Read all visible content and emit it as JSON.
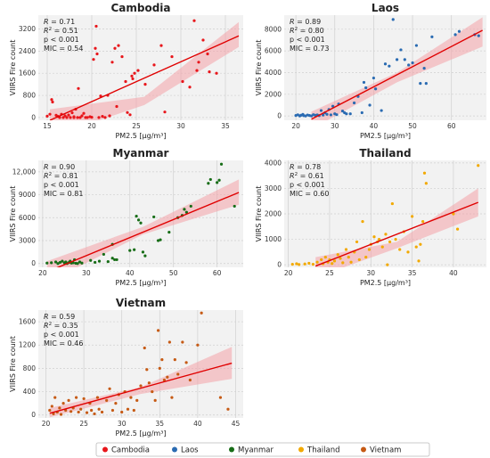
{
  "figure": {
    "y_label": "VIIRS Fire count",
    "x_label": "PM2.5 [μg/m³]"
  },
  "legend": [
    {
      "name": "Cambodia",
      "color": "#e8161b"
    },
    {
      "name": "Laos",
      "color": "#2a6bb2"
    },
    {
      "name": "Myanmar",
      "color": "#176d17"
    },
    {
      "name": "Thailand",
      "color": "#f2a900"
    },
    {
      "name": "Vietnam",
      "color": "#c65a14"
    }
  ],
  "chart_data": [
    {
      "type": "scatter",
      "title": "Cambodia",
      "color": "#e8161b",
      "xlim": [
        14,
        37
      ],
      "ylim": [
        -100,
        3700
      ],
      "xticks": [
        15,
        20,
        25,
        30,
        35
      ],
      "yticks": [
        0,
        800,
        1600,
        2400,
        3200
      ],
      "yticklabels": [
        "0",
        "800",
        "1600",
        "2400",
        "3200"
      ],
      "stats": {
        "R": "0.71",
        "R2": "0.51",
        "p": "< 0.001",
        "MIC": "0.54"
      },
      "fit": {
        "x": [
          15.3,
          36.5
        ],
        "y": [
          -100,
          2950
        ],
        "band_start": [
          -700,
          300
        ],
        "band_mid": [
          450,
          750
        ],
        "band_end": [
          2550,
          3450
        ]
      },
      "points": [
        [
          15,
          50
        ],
        [
          15.3,
          120
        ],
        [
          15.5,
          650
        ],
        [
          15.6,
          560
        ],
        [
          16,
          80
        ],
        [
          16.2,
          40
        ],
        [
          16.4,
          0
        ],
        [
          16.6,
          120
        ],
        [
          16.8,
          0
        ],
        [
          17,
          60
        ],
        [
          17.2,
          0
        ],
        [
          17.4,
          90
        ],
        [
          17.6,
          0
        ],
        [
          17.8,
          170
        ],
        [
          18,
          30
        ],
        [
          18,
          0
        ],
        [
          18.2,
          300
        ],
        [
          18.4,
          0
        ],
        [
          18.5,
          1050
        ],
        [
          18.7,
          0
        ],
        [
          18.9,
          60
        ],
        [
          19.1,
          150
        ],
        [
          19.3,
          0
        ],
        [
          19.5,
          0
        ],
        [
          19.8,
          30
        ],
        [
          20,
          10
        ],
        [
          20.2,
          2100
        ],
        [
          20.4,
          2500
        ],
        [
          20.5,
          3300
        ],
        [
          20.6,
          2300
        ],
        [
          20.8,
          0
        ],
        [
          21,
          780
        ],
        [
          21.2,
          40
        ],
        [
          21.5,
          0
        ],
        [
          21.8,
          800
        ],
        [
          22,
          60
        ],
        [
          22.3,
          2000
        ],
        [
          22.6,
          2500
        ],
        [
          22.8,
          400
        ],
        [
          23,
          2600
        ],
        [
          23.4,
          2200
        ],
        [
          23.8,
          1300
        ],
        [
          24,
          180
        ],
        [
          24.3,
          100
        ],
        [
          24.5,
          1500
        ],
        [
          24.6,
          1400
        ],
        [
          24.8,
          1600
        ],
        [
          25.2,
          1700
        ],
        [
          26,
          1200
        ],
        [
          27,
          1900
        ],
        [
          27.8,
          2600
        ],
        [
          28.2,
          200
        ],
        [
          29,
          2200
        ],
        [
          30.2,
          1300
        ],
        [
          31,
          1100
        ],
        [
          31.5,
          3500
        ],
        [
          31.8,
          1700
        ],
        [
          32,
          2000
        ],
        [
          32.5,
          2800
        ],
        [
          33,
          2300
        ],
        [
          33.2,
          1650
        ],
        [
          34,
          1600
        ]
      ]
    },
    {
      "type": "scatter",
      "title": "Laos",
      "color": "#2a6bb2",
      "xlim": [
        17,
        69
      ],
      "ylim": [
        -400,
        9300
      ],
      "xticks": [
        20,
        30,
        40,
        50,
        60
      ],
      "yticks": [
        0,
        2000,
        4000,
        6000,
        8000
      ],
      "yticklabels": [
        "0",
        "2000",
        "4000",
        "6000",
        "8000"
      ],
      "stats": {
        "R": "0.89",
        "R2": "0.80",
        "p": "< 0.001",
        "MIC": "0.73"
      },
      "fit": {
        "x": [
          24,
          68
        ],
        "y": [
          -300,
          7900
        ],
        "band_start": [
          -1200,
          400
        ],
        "band_mid": [
          3100,
          4000
        ],
        "band_end": [
          6400,
          9100
        ]
      },
      "points": [
        [
          20,
          40
        ],
        [
          20.5,
          110
        ],
        [
          21,
          0
        ],
        [
          21.3,
          60
        ],
        [
          21.8,
          150
        ],
        [
          22,
          30
        ],
        [
          22.5,
          0
        ],
        [
          23,
          90
        ],
        [
          23.5,
          40
        ],
        [
          24,
          0
        ],
        [
          24.5,
          120
        ],
        [
          25,
          60
        ],
        [
          25.5,
          100
        ],
        [
          26,
          30
        ],
        [
          26.5,
          500
        ],
        [
          27,
          80
        ],
        [
          27.5,
          300
        ],
        [
          28,
          150
        ],
        [
          28.5,
          600
        ],
        [
          29,
          100
        ],
        [
          29.5,
          900
        ],
        [
          30,
          200
        ],
        [
          30.5,
          120
        ],
        [
          31,
          1100
        ],
        [
          32,
          450
        ],
        [
          32.5,
          300
        ],
        [
          33,
          200
        ],
        [
          34,
          200
        ],
        [
          35,
          1200
        ],
        [
          36,
          1800
        ],
        [
          37,
          300
        ],
        [
          37.5,
          3100
        ],
        [
          38,
          2600
        ],
        [
          39,
          1000
        ],
        [
          40,
          3500
        ],
        [
          40.5,
          2500
        ],
        [
          42,
          500
        ],
        [
          43,
          4800
        ],
        [
          44,
          4600
        ],
        [
          45,
          8900
        ],
        [
          46,
          5200
        ],
        [
          47,
          6100
        ],
        [
          48,
          5200
        ],
        [
          49,
          4700
        ],
        [
          50,
          4900
        ],
        [
          51,
          6500
        ],
        [
          52,
          3000
        ],
        [
          53,
          4400
        ],
        [
          53.5,
          3000
        ],
        [
          55,
          7300
        ],
        [
          61,
          7500
        ],
        [
          62,
          7800
        ],
        [
          66,
          7500
        ],
        [
          67,
          7400
        ]
      ]
    },
    {
      "type": "scatter",
      "title": "Myanmar",
      "color": "#176d17",
      "xlim": [
        19,
        66
      ],
      "ylim": [
        -500,
        13500
      ],
      "xticks": [
        20,
        30,
        40,
        50,
        60
      ],
      "yticks": [
        0,
        3000,
        6000,
        9000,
        12000
      ],
      "yticklabels": [
        "0",
        "3000",
        "6000",
        "9000",
        "12,000"
      ],
      "stats": {
        "R": "0.90",
        "R2": "0.81",
        "p": "< 0.001",
        "MIC": "0.81"
      },
      "fit": {
        "x": [
          21,
          65
        ],
        "y": [
          -1100,
          9300
        ],
        "band_start": [
          -2500,
          300
        ],
        "band_mid": [
          3800,
          4800
        ],
        "band_end": [
          7700,
          11000
        ]
      },
      "points": [
        [
          21,
          60
        ],
        [
          22,
          100
        ],
        [
          23,
          200
        ],
        [
          23.5,
          0
        ],
        [
          24,
          150
        ],
        [
          24.5,
          300
        ],
        [
          25,
          80
        ],
        [
          25.3,
          200
        ],
        [
          25.6,
          0
        ],
        [
          26,
          120
        ],
        [
          26.3,
          300
        ],
        [
          26.6,
          50
        ],
        [
          27,
          100
        ],
        [
          27.3,
          500
        ],
        [
          27.6,
          30
        ],
        [
          28,
          0
        ],
        [
          28.5,
          200
        ],
        [
          29,
          50
        ],
        [
          31,
          400
        ],
        [
          32,
          150
        ],
        [
          33,
          300
        ],
        [
          34,
          1200
        ],
        [
          35,
          250
        ],
        [
          36,
          700
        ],
        [
          36,
          2500
        ],
        [
          36.5,
          500
        ],
        [
          37,
          500
        ],
        [
          40,
          1700
        ],
        [
          41,
          1800
        ],
        [
          41.5,
          6200
        ],
        [
          42,
          5700
        ],
        [
          42.5,
          5300
        ],
        [
          43,
          1500
        ],
        [
          43.5,
          1000
        ],
        [
          45.5,
          6100
        ],
        [
          46.5,
          3000
        ],
        [
          47,
          3100
        ],
        [
          49,
          4100
        ],
        [
          51,
          6000
        ],
        [
          52,
          6300
        ],
        [
          52.5,
          7100
        ],
        [
          53,
          6700
        ],
        [
          54,
          7500
        ],
        [
          58,
          10500
        ],
        [
          58.5,
          11000
        ],
        [
          60,
          10600
        ],
        [
          60.5,
          10900
        ],
        [
          61,
          13000
        ],
        [
          64,
          7500
        ]
      ]
    },
    {
      "type": "scatter",
      "title": "Thailand",
      "color": "#f2a900",
      "xlim": [
        19.5,
        44
      ],
      "ylim": [
        -100,
        4100
      ],
      "xticks": [
        20,
        25,
        30,
        35,
        40
      ],
      "yticks": [
        0,
        1000,
        2000,
        3000,
        4000
      ],
      "yticklabels": [
        "0",
        "1000",
        "2000",
        "3000",
        "4000"
      ],
      "stats": {
        "R": "0.78",
        "R2": "0.61",
        "p": "< 0.001",
        "MIC": "0.60"
      },
      "fit": {
        "x": [
          23.3,
          43
        ],
        "y": [
          -50,
          2450
        ],
        "band_start": [
          -500,
          300
        ],
        "band_mid": [
          650,
          900
        ],
        "band_end": [
          1900,
          3000
        ]
      },
      "points": [
        [
          20.5,
          20
        ],
        [
          21,
          40
        ],
        [
          21.3,
          10
        ],
        [
          22,
          30
        ],
        [
          22.5,
          60
        ],
        [
          23,
          20
        ],
        [
          23.5,
          100
        ],
        [
          24,
          200
        ],
        [
          24.2,
          40
        ],
        [
          24.5,
          300
        ],
        [
          24.8,
          100
        ],
        [
          25,
          200
        ],
        [
          25.3,
          50
        ],
        [
          25.6,
          150
        ],
        [
          26,
          400
        ],
        [
          26.3,
          250
        ],
        [
          26.6,
          80
        ],
        [
          27,
          600
        ],
        [
          27.3,
          300
        ],
        [
          27.6,
          100
        ],
        [
          28,
          500
        ],
        [
          28.3,
          900
        ],
        [
          28.6,
          200
        ],
        [
          29,
          1700
        ],
        [
          29.4,
          300
        ],
        [
          29.8,
          600
        ],
        [
          30,
          800
        ],
        [
          30.4,
          1100
        ],
        [
          30.8,
          900
        ],
        [
          31,
          1000
        ],
        [
          31.4,
          700
        ],
        [
          31.8,
          1200
        ],
        [
          32,
          0
        ],
        [
          32.3,
          900
        ],
        [
          32.6,
          2400
        ],
        [
          33,
          1000
        ],
        [
          33.5,
          600
        ],
        [
          34,
          1300
        ],
        [
          34.5,
          500
        ],
        [
          35,
          1900
        ],
        [
          35.5,
          700
        ],
        [
          35.8,
          150
        ],
        [
          36,
          800
        ],
        [
          36.3,
          1700
        ],
        [
          36.5,
          3600
        ],
        [
          36.7,
          3200
        ],
        [
          40,
          2000
        ],
        [
          40.5,
          1400
        ],
        [
          43,
          3900
        ]
      ]
    },
    {
      "type": "scatter",
      "title": "Vietnam",
      "color": "#c65a14",
      "xlim": [
        19,
        46
      ],
      "ylim": [
        -50,
        1800
      ],
      "xticks": [
        20,
        25,
        30,
        35,
        40,
        45
      ],
      "yticks": [
        0,
        400,
        800,
        1200,
        1600
      ],
      "yticklabels": [
        "0",
        "400",
        "800",
        "1200",
        "1600"
      ],
      "stats": {
        "R": "0.59",
        "R2": "0.35",
        "p": "< 0.001",
        "MIC": "0.46"
      },
      "fit": {
        "x": [
          20.5,
          44.5
        ],
        "y": [
          30,
          890
        ],
        "band_start": [
          -40,
          120
        ],
        "band_mid": [
          360,
          480
        ],
        "band_end": [
          620,
          1170
        ]
      },
      "points": [
        [
          20.5,
          80
        ],
        [
          20.8,
          150
        ],
        [
          21,
          20
        ],
        [
          21.2,
          300
        ],
        [
          21.5,
          50
        ],
        [
          21.8,
          120
        ],
        [
          22,
          10
        ],
        [
          22.3,
          200
        ],
        [
          22.6,
          80
        ],
        [
          23,
          250
        ],
        [
          23.3,
          60
        ],
        [
          23.6,
          120
        ],
        [
          24,
          300
        ],
        [
          24.3,
          50
        ],
        [
          24.6,
          100
        ],
        [
          25,
          280
        ],
        [
          25.4,
          40
        ],
        [
          25.8,
          200
        ],
        [
          26,
          80
        ],
        [
          26.4,
          20
        ],
        [
          26.8,
          300
        ],
        [
          27,
          100
        ],
        [
          27.4,
          50
        ],
        [
          28,
          250
        ],
        [
          28.4,
          450
        ],
        [
          28.8,
          80
        ],
        [
          29.2,
          200
        ],
        [
          29.6,
          350
        ],
        [
          30,
          50
        ],
        [
          30.4,
          400
        ],
        [
          30.8,
          100
        ],
        [
          31.2,
          300
        ],
        [
          31.6,
          80
        ],
        [
          32,
          250
        ],
        [
          32.5,
          500
        ],
        [
          33,
          1150
        ],
        [
          33.3,
          780
        ],
        [
          33.6,
          550
        ],
        [
          34,
          400
        ],
        [
          34.4,
          250
        ],
        [
          34.8,
          1450
        ],
        [
          35,
          800
        ],
        [
          35.3,
          950
        ],
        [
          35.6,
          600
        ],
        [
          36,
          650
        ],
        [
          36.3,
          1250
        ],
        [
          36.6,
          300
        ],
        [
          37,
          950
        ],
        [
          37.4,
          700
        ],
        [
          38,
          1250
        ],
        [
          38.5,
          900
        ],
        [
          39,
          600
        ],
        [
          40,
          1200
        ],
        [
          40.5,
          1750
        ],
        [
          43,
          300
        ],
        [
          44,
          100
        ]
      ]
    }
  ]
}
